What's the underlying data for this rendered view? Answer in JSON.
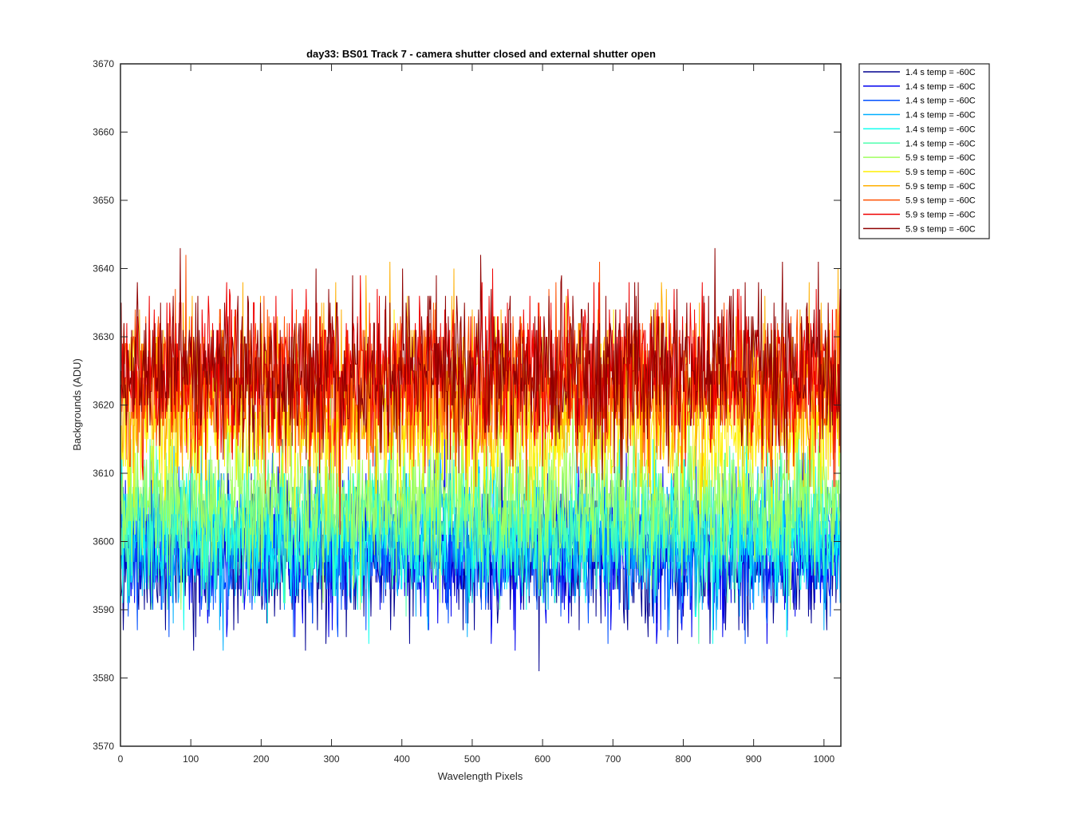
{
  "chart_data": {
    "type": "line",
    "title": "day33: BS01  Track 7 - camera shutter closed and external shutter open",
    "xlabel": "Wavelength Pixels",
    "ylabel": "Backgrounds (ADU)",
    "xlim": [
      0,
      1024
    ],
    "ylim": [
      3570,
      3670
    ],
    "xticks": [
      0,
      100,
      200,
      300,
      400,
      500,
      600,
      700,
      800,
      900,
      1000
    ],
    "yticks": [
      3570,
      3580,
      3590,
      3600,
      3610,
      3620,
      3630,
      3640,
      3650,
      3660,
      3670
    ],
    "grid": false,
    "legend_position": "outside-top-right",
    "x_points": 1024,
    "series": [
      {
        "name": "1.4 s temp = -60C",
        "color": "#00008f",
        "mean": 3597.5,
        "noise_sd": 4.9,
        "seed": 11
      },
      {
        "name": "1.4 s temp = -60C",
        "color": "#0000ef",
        "mean": 3598.5,
        "noise_sd": 4.9,
        "seed": 23
      },
      {
        "name": "1.4 s temp = -60C",
        "color": "#0050ff",
        "mean": 3599.5,
        "noise_sd": 4.9,
        "seed": 37
      },
      {
        "name": "1.4 s temp = -60C",
        "color": "#00afff",
        "mean": 3600.5,
        "noise_sd": 4.9,
        "seed": 41
      },
      {
        "name": "1.4 s temp = -60C",
        "color": "#10ffef",
        "mean": 3601.5,
        "noise_sd": 4.9,
        "seed": 53
      },
      {
        "name": "1.4 s temp = -60C",
        "color": "#50ffaf",
        "mean": 3603.0,
        "noise_sd": 4.9,
        "seed": 67
      },
      {
        "name": "5.9 s temp = -60C",
        "color": "#a0ff5f",
        "mean": 3606.5,
        "noise_sd": 5.4,
        "seed": 71
      },
      {
        "name": "5.9 s temp = -60C",
        "color": "#ffef00",
        "mean": 3617.5,
        "noise_sd": 5.8,
        "seed": 83
      },
      {
        "name": "5.9 s temp = -60C",
        "color": "#ffaf00",
        "mean": 3622.0,
        "noise_sd": 5.8,
        "seed": 97
      },
      {
        "name": "5.9 s temp = -60C",
        "color": "#ff5000",
        "mean": 3623.5,
        "noise_sd": 5.8,
        "seed": 101
      },
      {
        "name": "5.9 s temp = -60C",
        "color": "#ef0000",
        "mean": 3624.5,
        "noise_sd": 5.8,
        "seed": 113
      },
      {
        "name": "5.9 s temp = -60C",
        "color": "#8f0000",
        "mean": 3625.5,
        "noise_sd": 5.8,
        "seed": 127
      }
    ]
  }
}
